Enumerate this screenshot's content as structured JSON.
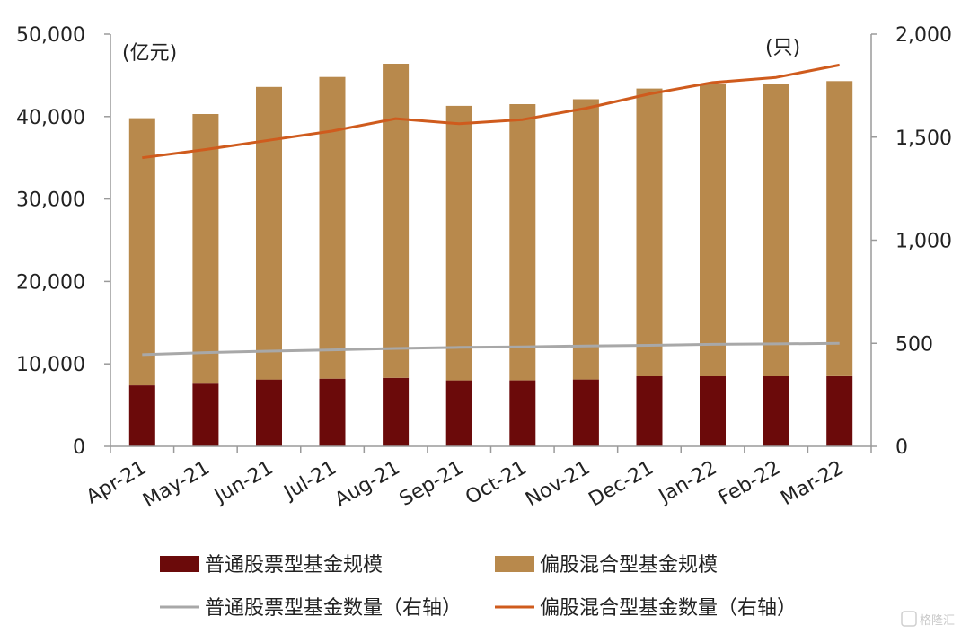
{
  "chart_data": {
    "type": "bar",
    "categories": [
      "Apr-21",
      "May-21",
      "Jun-21",
      "Jul-21",
      "Aug-21",
      "Sep-21",
      "Oct-21",
      "Nov-21",
      "Dec-21",
      "Jan-22",
      "Feb-22",
      "Mar-22"
    ],
    "series": [
      {
        "name": "普通股票型基金规模",
        "kind": "bar",
        "axis": "left",
        "color": "#6b0a0a",
        "values": [
          7400,
          7600,
          8100,
          8200,
          8300,
          8000,
          8000,
          8100,
          8500,
          8500,
          8500,
          8500
        ]
      },
      {
        "name": "偏股混合型基金规模",
        "kind": "bar",
        "axis": "left",
        "color": "#b8894c",
        "values": [
          32400,
          32700,
          35500,
          36600,
          38100,
          33300,
          33500,
          34000,
          34900,
          35500,
          35500,
          35800
        ]
      },
      {
        "name": "普通股票型基金数量（右轴）",
        "kind": "line",
        "axis": "right",
        "color": "#a8a8a8",
        "values": [
          445,
          455,
          462,
          468,
          475,
          480,
          483,
          487,
          490,
          495,
          497,
          500
        ]
      },
      {
        "name": "偏股混合型基金数量（右轴）",
        "kind": "line",
        "axis": "right",
        "color": "#cf5b1d",
        "values": [
          1400,
          1440,
          1485,
          1530,
          1590,
          1565,
          1585,
          1640,
          1710,
          1765,
          1790,
          1850
        ]
      }
    ],
    "stacked": true,
    "y_left": {
      "unit": "(亿元)",
      "ylim": [
        0,
        50000
      ],
      "ticks": [
        "0",
        "10,000",
        "20,000",
        "30,000",
        "40,000",
        "50,000"
      ]
    },
    "y_right": {
      "unit": "(只)",
      "ylim": [
        0,
        2000
      ],
      "ticks": [
        "0",
        "500",
        "1,000",
        "1,500",
        "2,000"
      ]
    },
    "grid": false,
    "legend_position": "bottom"
  },
  "watermark": "格隆汇"
}
